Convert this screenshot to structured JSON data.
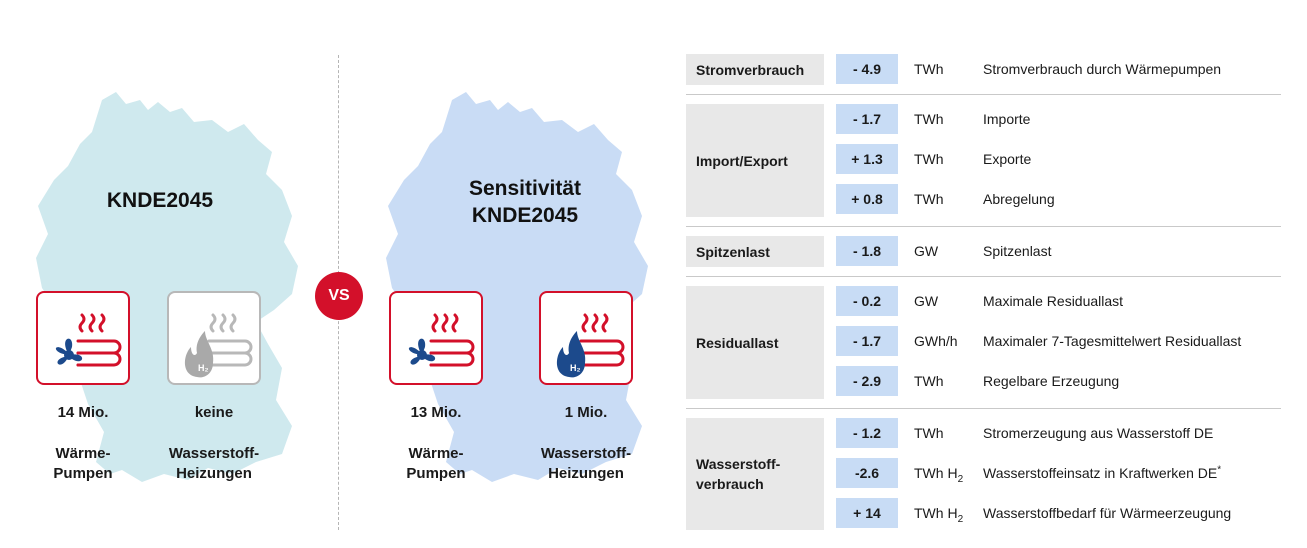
{
  "colors": {
    "accent": "#d3102a",
    "map_left": "#cfe9ee",
    "map_right": "#c9dcf5",
    "value_bg": "#c8dcf5",
    "label_bg": "#e8e8e8"
  },
  "left_scenario": {
    "title": "KNDE2045",
    "items": [
      {
        "icon": "heat-pump-icon",
        "count": "14 Mio.",
        "caption_lines": [
          "Wärme-",
          "Pumpen"
        ]
      },
      {
        "icon": "hydrogen-heating-icon",
        "count": "keine",
        "caption_lines": [
          "Wasserstoff-",
          "Heizungen"
        ]
      }
    ]
  },
  "vs_label": "VS",
  "right_scenario": {
    "title_lines": [
      "Sensitivität",
      "KNDE2045"
    ],
    "items": [
      {
        "icon": "heat-pump-icon",
        "count": "13 Mio.",
        "caption_lines": [
          "Wärme-",
          "Pumpen"
        ]
      },
      {
        "icon": "hydrogen-heating-icon",
        "count": "1 Mio.",
        "caption_lines": [
          "Wasserstoff-",
          "Heizungen"
        ]
      }
    ]
  },
  "table": {
    "groups": [
      {
        "label_lines": [
          "Stromverbrauch"
        ],
        "rows": [
          {
            "value": "- 4.9",
            "unit": "TWh",
            "unit_sub": "",
            "description": "Stromverbrauch durch Wärmepumpen",
            "note": ""
          }
        ]
      },
      {
        "label_lines": [
          "Import/Export"
        ],
        "rows": [
          {
            "value": "- 1.7",
            "unit": "TWh",
            "unit_sub": "",
            "description": "Importe",
            "note": ""
          },
          {
            "value": "+ 1.3",
            "unit": "TWh",
            "unit_sub": "",
            "description": "Exporte",
            "note": ""
          },
          {
            "value": "+ 0.8",
            "unit": "TWh",
            "unit_sub": "",
            "description": "Abregelung",
            "note": ""
          }
        ]
      },
      {
        "label_lines": [
          "Spitzenlast"
        ],
        "rows": [
          {
            "value": "- 1.8",
            "unit": "GW",
            "unit_sub": "",
            "description": "Spitzenlast",
            "note": ""
          }
        ]
      },
      {
        "label_lines": [
          "Residuallast"
        ],
        "rows": [
          {
            "value": "- 0.2",
            "unit": "GW",
            "unit_sub": "",
            "description": "Maximale Residuallast",
            "note": ""
          },
          {
            "value": "- 1.7",
            "unit": "GWh/h",
            "unit_sub": "",
            "description": "Maximaler 7-Tagesmittelwert Residuallast",
            "note": ""
          },
          {
            "value": "- 2.9",
            "unit": "TWh",
            "unit_sub": "",
            "description": "Regelbare Erzeugung",
            "note": ""
          }
        ]
      },
      {
        "label_lines": [
          "Wasserstoff-",
          "verbrauch"
        ],
        "rows": [
          {
            "value": "- 1.2",
            "unit": "TWh",
            "unit_sub": "",
            "description": "Stromerzeugung aus Wasserstoff DE",
            "note": ""
          },
          {
            "value": "-2.6",
            "unit": "TWh H",
            "unit_sub": "2",
            "description": "Wasserstoffeinsatz in Kraftwerken DE",
            "note": "*"
          },
          {
            "value": "+ 14",
            "unit": "TWh H",
            "unit_sub": "2",
            "description": "Wasserstoffbedarf für Wärmeerzeugung",
            "note": ""
          }
        ]
      }
    ]
  }
}
